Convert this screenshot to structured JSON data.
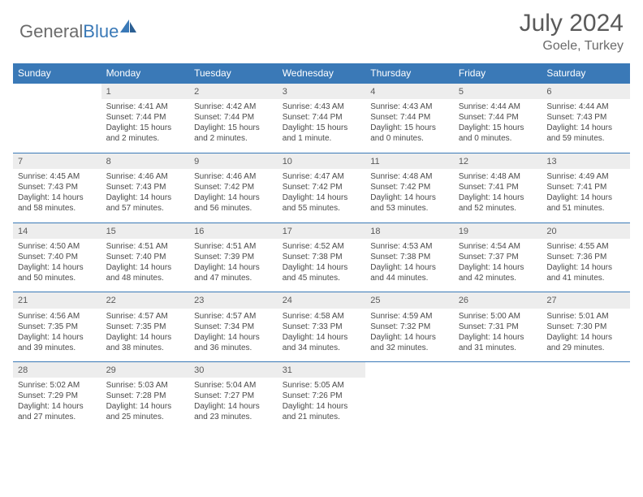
{
  "brand": {
    "part1": "General",
    "part2": "Blue"
  },
  "title": "July 2024",
  "location": "Goele, Turkey",
  "colors": {
    "accent": "#3a79b7",
    "header_bg": "#3a79b7",
    "daynum_bg": "#ededed",
    "text": "#4a4a4a"
  },
  "weekdays": [
    "Sunday",
    "Monday",
    "Tuesday",
    "Wednesday",
    "Thursday",
    "Friday",
    "Saturday"
  ],
  "grid": {
    "first_weekday_index": 1,
    "days_in_month": 31
  },
  "days": {
    "1": {
      "sunrise": "4:41 AM",
      "sunset": "7:44 PM",
      "daylight": "15 hours and 2 minutes."
    },
    "2": {
      "sunrise": "4:42 AM",
      "sunset": "7:44 PM",
      "daylight": "15 hours and 2 minutes."
    },
    "3": {
      "sunrise": "4:43 AM",
      "sunset": "7:44 PM",
      "daylight": "15 hours and 1 minute."
    },
    "4": {
      "sunrise": "4:43 AM",
      "sunset": "7:44 PM",
      "daylight": "15 hours and 0 minutes."
    },
    "5": {
      "sunrise": "4:44 AM",
      "sunset": "7:44 PM",
      "daylight": "15 hours and 0 minutes."
    },
    "6": {
      "sunrise": "4:44 AM",
      "sunset": "7:43 PM",
      "daylight": "14 hours and 59 minutes."
    },
    "7": {
      "sunrise": "4:45 AM",
      "sunset": "7:43 PM",
      "daylight": "14 hours and 58 minutes."
    },
    "8": {
      "sunrise": "4:46 AM",
      "sunset": "7:43 PM",
      "daylight": "14 hours and 57 minutes."
    },
    "9": {
      "sunrise": "4:46 AM",
      "sunset": "7:42 PM",
      "daylight": "14 hours and 56 minutes."
    },
    "10": {
      "sunrise": "4:47 AM",
      "sunset": "7:42 PM",
      "daylight": "14 hours and 55 minutes."
    },
    "11": {
      "sunrise": "4:48 AM",
      "sunset": "7:42 PM",
      "daylight": "14 hours and 53 minutes."
    },
    "12": {
      "sunrise": "4:48 AM",
      "sunset": "7:41 PM",
      "daylight": "14 hours and 52 minutes."
    },
    "13": {
      "sunrise": "4:49 AM",
      "sunset": "7:41 PM",
      "daylight": "14 hours and 51 minutes."
    },
    "14": {
      "sunrise": "4:50 AM",
      "sunset": "7:40 PM",
      "daylight": "14 hours and 50 minutes."
    },
    "15": {
      "sunrise": "4:51 AM",
      "sunset": "7:40 PM",
      "daylight": "14 hours and 48 minutes."
    },
    "16": {
      "sunrise": "4:51 AM",
      "sunset": "7:39 PM",
      "daylight": "14 hours and 47 minutes."
    },
    "17": {
      "sunrise": "4:52 AM",
      "sunset": "7:38 PM",
      "daylight": "14 hours and 45 minutes."
    },
    "18": {
      "sunrise": "4:53 AM",
      "sunset": "7:38 PM",
      "daylight": "14 hours and 44 minutes."
    },
    "19": {
      "sunrise": "4:54 AM",
      "sunset": "7:37 PM",
      "daylight": "14 hours and 42 minutes."
    },
    "20": {
      "sunrise": "4:55 AM",
      "sunset": "7:36 PM",
      "daylight": "14 hours and 41 minutes."
    },
    "21": {
      "sunrise": "4:56 AM",
      "sunset": "7:35 PM",
      "daylight": "14 hours and 39 minutes."
    },
    "22": {
      "sunrise": "4:57 AM",
      "sunset": "7:35 PM",
      "daylight": "14 hours and 38 minutes."
    },
    "23": {
      "sunrise": "4:57 AM",
      "sunset": "7:34 PM",
      "daylight": "14 hours and 36 minutes."
    },
    "24": {
      "sunrise": "4:58 AM",
      "sunset": "7:33 PM",
      "daylight": "14 hours and 34 minutes."
    },
    "25": {
      "sunrise": "4:59 AM",
      "sunset": "7:32 PM",
      "daylight": "14 hours and 32 minutes."
    },
    "26": {
      "sunrise": "5:00 AM",
      "sunset": "7:31 PM",
      "daylight": "14 hours and 31 minutes."
    },
    "27": {
      "sunrise": "5:01 AM",
      "sunset": "7:30 PM",
      "daylight": "14 hours and 29 minutes."
    },
    "28": {
      "sunrise": "5:02 AM",
      "sunset": "7:29 PM",
      "daylight": "14 hours and 27 minutes."
    },
    "29": {
      "sunrise": "5:03 AM",
      "sunset": "7:28 PM",
      "daylight": "14 hours and 25 minutes."
    },
    "30": {
      "sunrise": "5:04 AM",
      "sunset": "7:27 PM",
      "daylight": "14 hours and 23 minutes."
    },
    "31": {
      "sunrise": "5:05 AM",
      "sunset": "7:26 PM",
      "daylight": "14 hours and 21 minutes."
    }
  },
  "labels": {
    "sunrise": "Sunrise:",
    "sunset": "Sunset:",
    "daylight": "Daylight:"
  }
}
